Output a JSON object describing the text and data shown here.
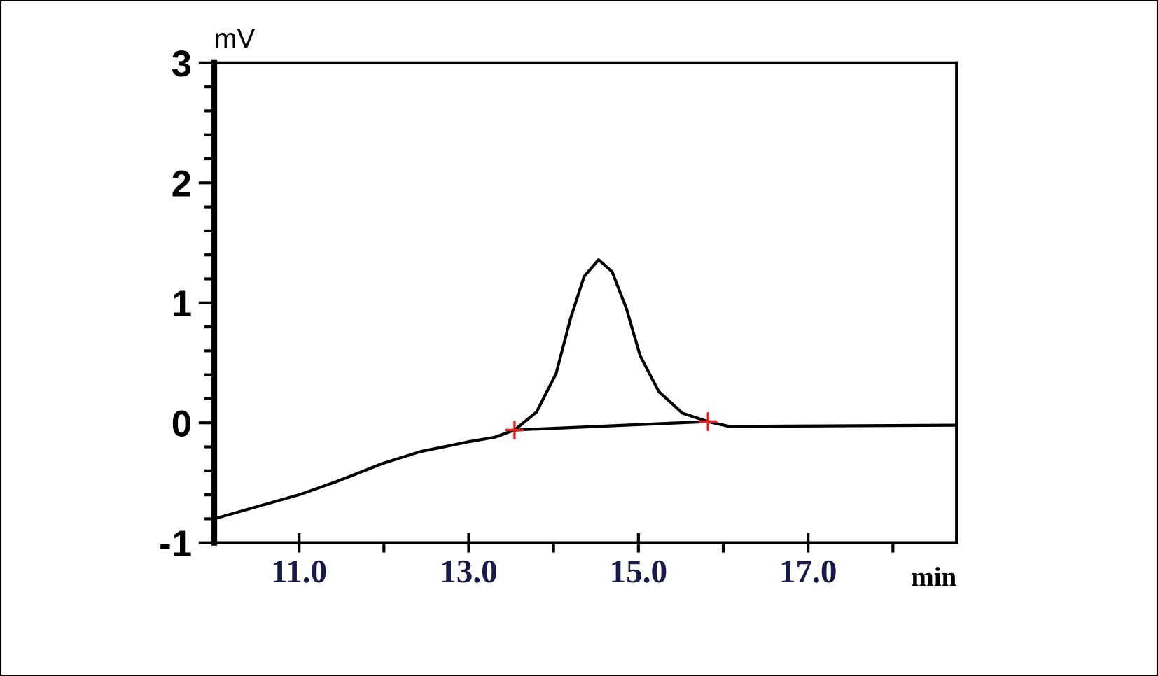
{
  "chart_data": {
    "type": "line",
    "xlabel": "min",
    "ylabel": "mV",
    "xlim": [
      10,
      18.75
    ],
    "ylim": [
      -1,
      3
    ],
    "xticks": [
      {
        "value": 11,
        "label": "11.0"
      },
      {
        "value": 12,
        "label": null
      },
      {
        "value": 13,
        "label": "13.0"
      },
      {
        "value": 14,
        "label": null
      },
      {
        "value": 15,
        "label": "15.0"
      },
      {
        "value": 16,
        "label": null
      },
      {
        "value": 17,
        "label": "17.0"
      },
      {
        "value": 18,
        "label": null
      }
    ],
    "yticks": [
      -1,
      {
        "value": -0.8,
        "label": null
      },
      {
        "value": -0.6,
        "label": null
      },
      {
        "value": -0.4,
        "label": null
      },
      {
        "value": -0.2,
        "label": null
      },
      0,
      {
        "value": 0.2,
        "label": null
      },
      {
        "value": 0.4,
        "label": null
      },
      {
        "value": 0.6,
        "label": null
      },
      {
        "value": 0.8,
        "label": null
      },
      1,
      {
        "value": 1.2,
        "label": null
      },
      {
        "value": 1.4,
        "label": null
      },
      {
        "value": 1.6,
        "label": null
      },
      {
        "value": 1.8,
        "label": null
      },
      2,
      {
        "value": 2.2,
        "label": null
      },
      {
        "value": 2.4,
        "label": null
      },
      {
        "value": 2.6,
        "label": null
      },
      {
        "value": 2.8,
        "label": null
      },
      3
    ],
    "grid": false,
    "legend": false,
    "series": [
      {
        "color": "#000000",
        "x": [
          10.0,
          11.0,
          11.44,
          11.98,
          12.43,
          12.98,
          13.31,
          13.54,
          13.8,
          14.03,
          14.2,
          14.36,
          14.53,
          14.69,
          14.86,
          15.02,
          15.24,
          15.52,
          15.82,
          16.07,
          18.75
        ],
        "values": [
          -0.8,
          -0.6,
          -0.49,
          -0.34,
          -0.24,
          -0.16,
          -0.12,
          -0.06,
          0.09,
          0.41,
          0.87,
          1.22,
          1.36,
          1.26,
          0.95,
          0.56,
          0.26,
          0.08,
          0.01,
          -0.03,
          -0.02
        ]
      },
      {
        "color": "#000000",
        "x": [
          13.54,
          15.82
        ],
        "values": [
          -0.06,
          0.01
        ]
      },
      {
        "type": "scatter",
        "color": "#e02020",
        "marker": "cross",
        "x": [
          13.54,
          15.82
        ],
        "values": [
          -0.06,
          0.01
        ]
      }
    ]
  }
}
